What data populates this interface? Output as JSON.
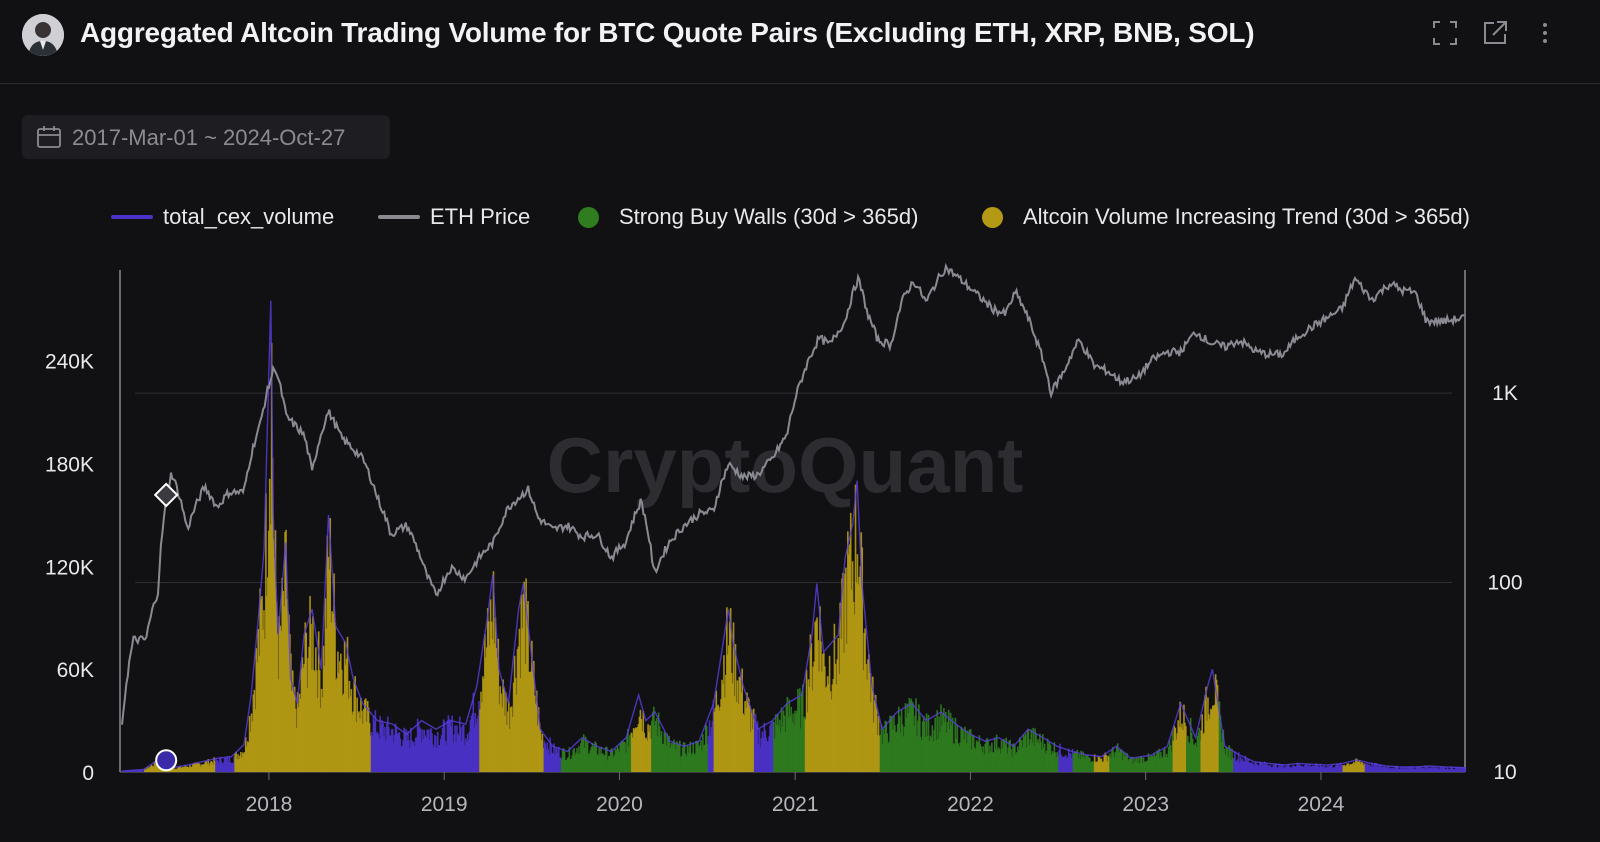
{
  "header": {
    "title": "Aggregated Altcoin Trading Volume for BTC Quote Pairs (Excluding ETH, XRP, BNB, SOL)"
  },
  "date_range": {
    "label": "2017-Mar-01 ~ 2024-Oct-27"
  },
  "watermark": "CryptoQuant",
  "colors": {
    "volume": "#4b32c8",
    "eth_price": "#8a8a92",
    "buy_walls": "#2f7d1f",
    "alt_trend": "#b49a14",
    "grid": "#2e2e33",
    "axis": "#6b6b72"
  },
  "chart_data": {
    "type": "area",
    "title": "Aggregated Altcoin Trading Volume for BTC Quote Pairs (Excluding ETH, XRP, BNB, SOL)",
    "x_range": [
      "2017-03-01",
      "2024-10-27"
    ],
    "x_ticks": [
      "2018",
      "2019",
      "2020",
      "2021",
      "2022",
      "2023",
      "2024"
    ],
    "left_axis": {
      "ticks": [
        "0",
        "60K",
        "120K",
        "180K",
        "240K"
      ],
      "values": [
        0,
        60000,
        120000,
        180000,
        240000
      ],
      "range": [
        0,
        290000
      ]
    },
    "right_axis": {
      "scale": "log",
      "ticks": [
        "10",
        "100",
        "1K"
      ],
      "values": [
        10,
        100,
        1000
      ],
      "range": [
        10,
        4200
      ]
    },
    "legend": [
      {
        "name": "total_cex_volume",
        "kind": "line"
      },
      {
        "name": "ETH Price",
        "kind": "line"
      },
      {
        "name": "Strong Buy Walls (30d > 365d)",
        "kind": "dot"
      },
      {
        "name": "Altcoin Volume Increasing Trend (30d > 365d)",
        "kind": "dot"
      }
    ],
    "series": [
      {
        "name": "total_cex_volume",
        "axis": "left",
        "points": [
          [
            "2017-03-01",
            500
          ],
          [
            "2017-04-15",
            1500
          ],
          [
            "2017-05-20",
            8000
          ],
          [
            "2017-06-15",
            2500
          ],
          [
            "2017-07-15",
            4000
          ],
          [
            "2017-08-15",
            6000
          ],
          [
            "2017-09-15",
            8000
          ],
          [
            "2017-10-15",
            9000
          ],
          [
            "2017-11-10",
            16000
          ],
          [
            "2017-11-25",
            45000
          ],
          [
            "2017-12-10",
            90000
          ],
          [
            "2017-12-22",
            130000
          ],
          [
            "2018-01-05",
            275000
          ],
          [
            "2018-01-10",
            150000
          ],
          [
            "2018-01-20",
            80000
          ],
          [
            "2018-02-05",
            134000
          ],
          [
            "2018-02-15",
            55000
          ],
          [
            "2018-03-01",
            40000
          ],
          [
            "2018-03-15",
            80000
          ],
          [
            "2018-04-01",
            95000
          ],
          [
            "2018-04-20",
            60000
          ],
          [
            "2018-05-05",
            150000
          ],
          [
            "2018-05-20",
            85000
          ],
          [
            "2018-06-10",
            75000
          ],
          [
            "2018-06-25",
            55000
          ],
          [
            "2018-07-15",
            40000
          ],
          [
            "2018-08-15",
            30000
          ],
          [
            "2018-09-15",
            28000
          ],
          [
            "2018-10-15",
            22000
          ],
          [
            "2018-11-15",
            30000
          ],
          [
            "2018-12-15",
            25000
          ],
          [
            "2019-01-15",
            30000
          ],
          [
            "2019-02-15",
            28000
          ],
          [
            "2019-03-10",
            50000
          ],
          [
            "2019-04-01",
            90000
          ],
          [
            "2019-04-12",
            115000
          ],
          [
            "2019-04-25",
            60000
          ],
          [
            "2019-05-15",
            40000
          ],
          [
            "2019-06-05",
            95000
          ],
          [
            "2019-06-15",
            110000
          ],
          [
            "2019-07-01",
            70000
          ],
          [
            "2019-07-20",
            25000
          ],
          [
            "2019-08-15",
            15000
          ],
          [
            "2019-09-15",
            12000
          ],
          [
            "2019-10-15",
            20000
          ],
          [
            "2019-11-15",
            15000
          ],
          [
            "2019-12-15",
            12000
          ],
          [
            "2020-01-15",
            20000
          ],
          [
            "2020-02-10",
            45000
          ],
          [
            "2020-02-25",
            30000
          ],
          [
            "2020-03-15",
            35000
          ],
          [
            "2020-04-15",
            18000
          ],
          [
            "2020-05-15",
            15000
          ],
          [
            "2020-06-15",
            18000
          ],
          [
            "2020-07-15",
            40000
          ],
          [
            "2020-08-01",
            70000
          ],
          [
            "2020-08-15",
            95000
          ],
          [
            "2020-08-25",
            75000
          ],
          [
            "2020-09-15",
            50000
          ],
          [
            "2020-10-15",
            25000
          ],
          [
            "2020-11-15",
            30000
          ],
          [
            "2020-12-15",
            40000
          ],
          [
            "2021-01-15",
            45000
          ],
          [
            "2021-02-05",
            80000
          ],
          [
            "2021-02-15",
            110000
          ],
          [
            "2021-03-01",
            70000
          ],
          [
            "2021-04-01",
            80000
          ],
          [
            "2021-04-15",
            125000
          ],
          [
            "2021-05-01",
            145000
          ],
          [
            "2021-05-10",
            170000
          ],
          [
            "2021-05-20",
            110000
          ],
          [
            "2021-06-10",
            50000
          ],
          [
            "2021-07-01",
            25000
          ],
          [
            "2021-08-01",
            35000
          ],
          [
            "2021-09-01",
            40000
          ],
          [
            "2021-10-01",
            30000
          ],
          [
            "2021-11-01",
            35000
          ],
          [
            "2021-12-01",
            28000
          ],
          [
            "2022-01-01",
            22000
          ],
          [
            "2022-02-01",
            18000
          ],
          [
            "2022-03-01",
            20000
          ],
          [
            "2022-04-01",
            15000
          ],
          [
            "2022-05-01",
            25000
          ],
          [
            "2022-06-01",
            20000
          ],
          [
            "2022-07-01",
            15000
          ],
          [
            "2022-08-01",
            12000
          ],
          [
            "2022-09-01",
            10000
          ],
          [
            "2022-10-01",
            9000
          ],
          [
            "2022-11-01",
            15000
          ],
          [
            "2022-12-01",
            8000
          ],
          [
            "2023-01-15",
            10000
          ],
          [
            "2023-02-15",
            15000
          ],
          [
            "2023-03-15",
            40000
          ],
          [
            "2023-04-15",
            20000
          ],
          [
            "2023-05-10",
            50000
          ],
          [
            "2023-05-20",
            60000
          ],
          [
            "2023-06-15",
            15000
          ],
          [
            "2023-07-15",
            10000
          ],
          [
            "2023-08-15",
            6000
          ],
          [
            "2023-09-15",
            5000
          ],
          [
            "2023-10-15",
            4000
          ],
          [
            "2023-11-15",
            5000
          ],
          [
            "2023-12-15",
            4500
          ],
          [
            "2024-01-15",
            4000
          ],
          [
            "2024-02-15",
            5000
          ],
          [
            "2024-03-15",
            7000
          ],
          [
            "2024-04-15",
            5000
          ],
          [
            "2024-05-15",
            3500
          ],
          [
            "2024-06-15",
            3000
          ],
          [
            "2024-07-15",
            3000
          ],
          [
            "2024-08-15",
            3500
          ],
          [
            "2024-09-15",
            3000
          ],
          [
            "2024-10-27",
            2500
          ]
        ]
      },
      {
        "name": "ETH Price",
        "axis": "right",
        "points": [
          [
            "2017-03-01",
            17
          ],
          [
            "2017-03-25",
            50
          ],
          [
            "2017-04-20",
            50
          ],
          [
            "2017-05-15",
            90
          ],
          [
            "2017-06-12",
            380
          ],
          [
            "2017-07-15",
            190
          ],
          [
            "2017-08-20",
            320
          ],
          [
            "2017-09-15",
            250
          ],
          [
            "2017-10-10",
            300
          ],
          [
            "2017-11-10",
            300
          ],
          [
            "2017-12-15",
            700
          ],
          [
            "2018-01-13",
            1380
          ],
          [
            "2018-02-06",
            750
          ],
          [
            "2018-03-15",
            600
          ],
          [
            "2018-04-01",
            380
          ],
          [
            "2018-05-05",
            800
          ],
          [
            "2018-06-01",
            580
          ],
          [
            "2018-07-15",
            450
          ],
          [
            "2018-08-15",
            280
          ],
          [
            "2018-09-12",
            180
          ],
          [
            "2018-10-15",
            200
          ],
          [
            "2018-11-25",
            110
          ],
          [
            "2018-12-15",
            85
          ],
          [
            "2019-01-15",
            120
          ],
          [
            "2019-02-15",
            105
          ],
          [
            "2019-03-15",
            135
          ],
          [
            "2019-04-15",
            165
          ],
          [
            "2019-05-15",
            250
          ],
          [
            "2019-06-25",
            310
          ],
          [
            "2019-07-15",
            220
          ],
          [
            "2019-08-15",
            190
          ],
          [
            "2019-09-15",
            200
          ],
          [
            "2019-10-15",
            175
          ],
          [
            "2019-11-15",
            180
          ],
          [
            "2019-12-15",
            135
          ],
          [
            "2020-01-15",
            165
          ],
          [
            "2020-02-15",
            270
          ],
          [
            "2020-03-13",
            110
          ],
          [
            "2020-04-15",
            165
          ],
          [
            "2020-05-15",
            200
          ],
          [
            "2020-06-15",
            230
          ],
          [
            "2020-07-15",
            240
          ],
          [
            "2020-08-15",
            420
          ],
          [
            "2020-09-15",
            360
          ],
          [
            "2020-10-15",
            370
          ],
          [
            "2020-11-15",
            450
          ],
          [
            "2020-12-15",
            600
          ],
          [
            "2021-01-15",
            1200
          ],
          [
            "2021-02-20",
            1950
          ],
          [
            "2021-03-15",
            1800
          ],
          [
            "2021-04-15",
            2400
          ],
          [
            "2021-05-12",
            4000
          ],
          [
            "2021-06-01",
            2600
          ],
          [
            "2021-06-22",
            1900
          ],
          [
            "2021-07-20",
            1800
          ],
          [
            "2021-08-15",
            3200
          ],
          [
            "2021-09-05",
            3900
          ],
          [
            "2021-10-01",
            3000
          ],
          [
            "2021-11-10",
            4600
          ],
          [
            "2021-12-15",
            3900
          ],
          [
            "2022-01-15",
            3300
          ],
          [
            "2022-02-15",
            2800
          ],
          [
            "2022-03-15",
            2600
          ],
          [
            "2022-04-05",
            3400
          ],
          [
            "2022-05-15",
            2000
          ],
          [
            "2022-06-18",
            1000
          ],
          [
            "2022-07-15",
            1300
          ],
          [
            "2022-08-15",
            1900
          ],
          [
            "2022-09-15",
            1400
          ],
          [
            "2022-10-15",
            1300
          ],
          [
            "2022-11-10",
            1150
          ],
          [
            "2022-12-15",
            1200
          ],
          [
            "2023-01-15",
            1500
          ],
          [
            "2023-02-15",
            1650
          ],
          [
            "2023-03-15",
            1650
          ],
          [
            "2023-04-15",
            2100
          ],
          [
            "2023-05-15",
            1850
          ],
          [
            "2023-06-15",
            1750
          ],
          [
            "2023-07-15",
            1900
          ],
          [
            "2023-08-20",
            1650
          ],
          [
            "2023-09-15",
            1600
          ],
          [
            "2023-10-15",
            1600
          ],
          [
            "2023-11-15",
            2000
          ],
          [
            "2023-12-15",
            2250
          ],
          [
            "2024-01-15",
            2500
          ],
          [
            "2024-02-15",
            2800
          ],
          [
            "2024-03-12",
            4000
          ],
          [
            "2024-04-15",
            3100
          ],
          [
            "2024-05-25",
            3800
          ],
          [
            "2024-06-15",
            3500
          ],
          [
            "2024-07-15",
            3400
          ],
          [
            "2024-08-07",
            2400
          ],
          [
            "2024-09-15",
            2400
          ],
          [
            "2024-10-27",
            2500
          ]
        ]
      },
      {
        "name": "Strong Buy Walls (30d > 365d)",
        "kind": "shaded-periods",
        "periods": [
          [
            "2019-09-01",
            "2020-02-01"
          ],
          [
            "2020-03-01",
            "2020-07-01"
          ],
          [
            "2020-11-15",
            "2021-01-20"
          ],
          [
            "2021-06-25",
            "2022-07-01"
          ],
          [
            "2022-08-01",
            "2023-06-30"
          ]
        ]
      },
      {
        "name": "Altcoin Volume Increasing Trend (30d > 365d)",
        "kind": "shaded-periods",
        "periods": [
          [
            "2017-04-15",
            "2017-09-10"
          ],
          [
            "2017-10-20",
            "2018-07-30"
          ],
          [
            "2019-03-15",
            "2019-07-25"
          ],
          [
            "2020-01-25",
            "2020-03-05"
          ],
          [
            "2020-07-15",
            "2020-10-05"
          ],
          [
            "2021-01-20",
            "2021-06-25"
          ],
          [
            "2022-09-15",
            "2022-10-15"
          ],
          [
            "2023-02-25",
            "2023-03-25"
          ],
          [
            "2023-04-25",
            "2023-05-31"
          ],
          [
            "2024-02-15",
            "2024-03-31"
          ]
        ]
      }
    ],
    "markers": [
      {
        "series": "ETH Price",
        "date": "2017-06-01",
        "value": 290,
        "shape": "diamond"
      },
      {
        "series": "total_cex_volume",
        "date": "2017-06-01",
        "value": 4500,
        "shape": "circle"
      }
    ]
  }
}
